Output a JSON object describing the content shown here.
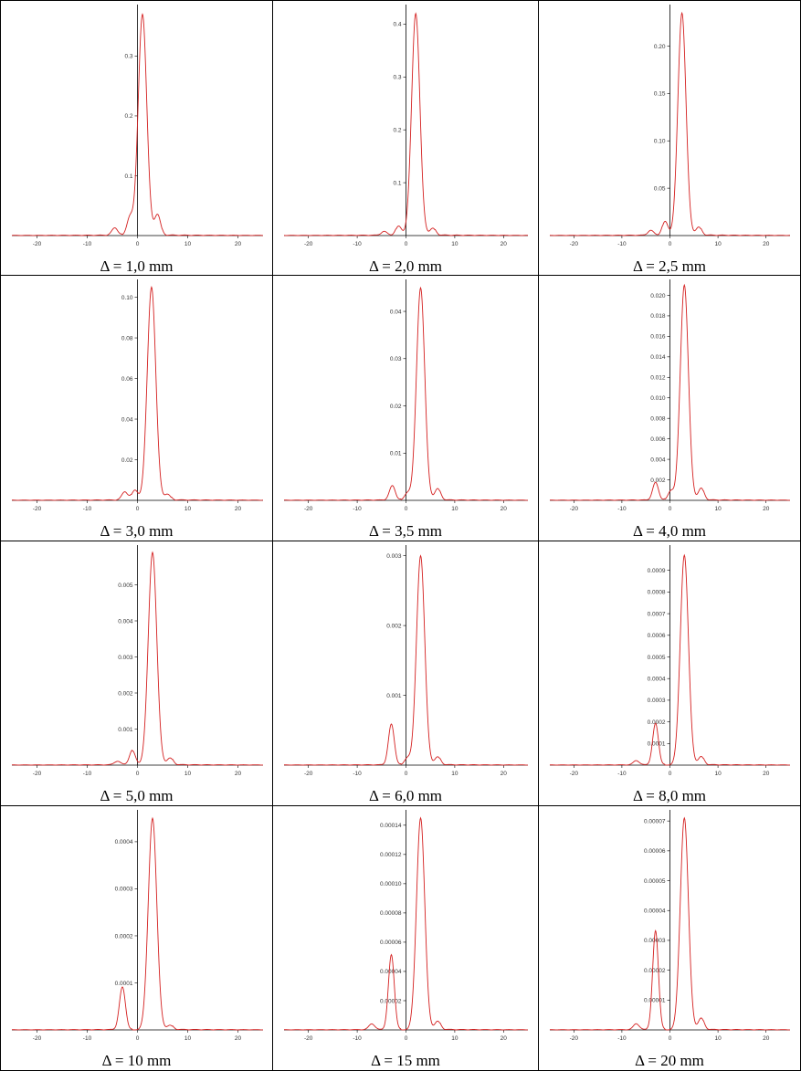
{
  "chart_data": [
    {
      "type": "line",
      "title": "Δ = 1,0 mm",
      "xlim": [
        -25,
        25
      ],
      "xticks": [
        -20,
        -10,
        0,
        10,
        20
      ],
      "yticks": [
        0.1,
        0.2,
        0.3
      ],
      "ytick_labels": [
        "0.1",
        "0.2",
        "0.3"
      ],
      "ylim": [
        0,
        0.38
      ],
      "series": [
        {
          "color": "#d42020",
          "peak": {
            "x": 1.0,
            "y": 0.37
          },
          "side_peaks": [
            {
              "x": 4.0,
              "y": 0.035
            },
            {
              "x": -1.5,
              "y": 0.03
            },
            {
              "x": -4.5,
              "y": 0.012
            }
          ]
        }
      ]
    },
    {
      "type": "line",
      "title": "Δ = 2,0 mm",
      "xlim": [
        -25,
        25
      ],
      "xticks": [
        -20,
        -10,
        0,
        10,
        20
      ],
      "yticks": [
        0.1,
        0.2,
        0.3,
        0.4
      ],
      "ytick_labels": [
        "0.1",
        "0.2",
        "0.3",
        "0.4"
      ],
      "ylim": [
        0,
        0.43
      ],
      "series": [
        {
          "color": "#d42020",
          "peak": {
            "x": 2.0,
            "y": 0.42
          },
          "side_peaks": [
            {
              "x": -1.5,
              "y": 0.018
            },
            {
              "x": 5.5,
              "y": 0.014
            },
            {
              "x": -4.5,
              "y": 0.007
            }
          ]
        }
      ]
    },
    {
      "type": "line",
      "title": "Δ = 2,5 mm",
      "xlim": [
        -25,
        25
      ],
      "xticks": [
        -20,
        -10,
        0,
        10,
        20
      ],
      "yticks": [
        0.05,
        0.1,
        0.15,
        0.2
      ],
      "ytick_labels": [
        "0.05",
        "0.10",
        "0.15",
        "0.20"
      ],
      "ylim": [
        0,
        0.24
      ],
      "series": [
        {
          "color": "#d42020",
          "peak": {
            "x": 2.5,
            "y": 0.235
          },
          "side_peaks": [
            {
              "x": -1.0,
              "y": 0.015
            },
            {
              "x": 6.0,
              "y": 0.009
            },
            {
              "x": -4.0,
              "y": 0.005
            }
          ]
        }
      ]
    },
    {
      "type": "line",
      "title": "Δ = 3,0 mm",
      "xlim": [
        -25,
        25
      ],
      "xticks": [
        -20,
        -10,
        0,
        10,
        20
      ],
      "yticks": [
        0.02,
        0.04,
        0.06,
        0.08,
        0.1
      ],
      "ytick_labels": [
        "0.02",
        "0.04",
        "0.06",
        "0.08",
        "0.10"
      ],
      "ylim": [
        0,
        0.107
      ],
      "series": [
        {
          "color": "#d42020",
          "peak": {
            "x": 2.8,
            "y": 0.105
          },
          "side_peaks": [
            {
              "x": -0.5,
              "y": 0.005
            },
            {
              "x": -2.5,
              "y": 0.004
            },
            {
              "x": 6.0,
              "y": 0.003
            }
          ]
        }
      ]
    },
    {
      "type": "line",
      "title": "Δ = 3,5 mm",
      "xlim": [
        -25,
        25
      ],
      "xticks": [
        -20,
        -10,
        0,
        10,
        20
      ],
      "yticks": [
        0.01,
        0.02,
        0.03,
        0.04
      ],
      "ytick_labels": [
        "0.01",
        "0.02",
        "0.03",
        "0.04"
      ],
      "ylim": [
        0,
        0.046
      ],
      "series": [
        {
          "color": "#d42020",
          "peak": {
            "x": 3.0,
            "y": 0.045
          },
          "side_peaks": [
            {
              "x": -2.8,
              "y": 0.003
            },
            {
              "x": 6.5,
              "y": 0.0025
            },
            {
              "x": 0.3,
              "y": 0.0015
            }
          ]
        }
      ]
    },
    {
      "type": "line",
      "title": "Δ = 4,0 mm",
      "xlim": [
        -25,
        25
      ],
      "xticks": [
        -20,
        -10,
        0,
        10,
        20
      ],
      "yticks": [
        0.002,
        0.004,
        0.006,
        0.008,
        0.01,
        0.012,
        0.014,
        0.016,
        0.018,
        0.02
      ],
      "ytick_labels": [
        "0.002",
        "0.004",
        "0.006",
        "0.008",
        "0.010",
        "0.012",
        "0.014",
        "0.016",
        "0.018",
        "0.020"
      ],
      "ylim": [
        0,
        0.0212
      ],
      "series": [
        {
          "color": "#d42020",
          "peak": {
            "x": 3.0,
            "y": 0.021
          },
          "side_peaks": [
            {
              "x": -3.0,
              "y": 0.0017
            },
            {
              "x": 6.5,
              "y": 0.0012
            },
            {
              "x": 0.2,
              "y": 0.0009
            }
          ]
        }
      ]
    },
    {
      "type": "line",
      "title": "Δ = 5,0 mm",
      "xlim": [
        -25,
        25
      ],
      "xticks": [
        -20,
        -10,
        0,
        10,
        20
      ],
      "yticks": [
        0.001,
        0.002,
        0.003,
        0.004,
        0.005
      ],
      "ytick_labels": [
        "0.001",
        "0.002",
        "0.003",
        "0.004",
        "0.005"
      ],
      "ylim": [
        0,
        0.006
      ],
      "series": [
        {
          "color": "#d42020",
          "peak": {
            "x": 3.0,
            "y": 0.0059
          },
          "side_peaks": [
            {
              "x": -1.0,
              "y": 0.0004
            },
            {
              "x": 6.5,
              "y": 0.0002
            },
            {
              "x": -4.0,
              "y": 0.0001
            }
          ]
        }
      ]
    },
    {
      "type": "line",
      "title": "Δ = 6,0 mm",
      "xlim": [
        -25,
        25
      ],
      "xticks": [
        -20,
        -10,
        0,
        10,
        20
      ],
      "yticks": [
        0.001,
        0.002,
        0.003
      ],
      "ytick_labels": [
        "0.001",
        "0.002",
        "0.003"
      ],
      "ylim": [
        0,
        0.0031
      ],
      "series": [
        {
          "color": "#d42020",
          "peak": {
            "x": 3.0,
            "y": 0.003
          },
          "side_peaks": [
            {
              "x": -3.0,
              "y": 0.00058
            },
            {
              "x": 6.5,
              "y": 0.00012
            },
            {
              "x": 0.3,
              "y": 0.0001
            }
          ]
        }
      ]
    },
    {
      "type": "line",
      "title": "Δ = 8,0 mm",
      "xlim": [
        -25,
        25
      ],
      "xticks": [
        -20,
        -10,
        0,
        10,
        20
      ],
      "yticks": [
        0.0001,
        0.0002,
        0.0003,
        0.0004,
        0.0005,
        0.0006,
        0.0007,
        0.0008,
        0.0009
      ],
      "ytick_labels": [
        "0.0001",
        "0.0002",
        "0.0003",
        "0.0004",
        "0.0005",
        "0.0006",
        "0.0007",
        "0.0008",
        "0.0009"
      ],
      "ylim": [
        0,
        0.001
      ],
      "series": [
        {
          "color": "#d42020",
          "peak": {
            "x": 3.0,
            "y": 0.00097
          },
          "side_peaks": [
            {
              "x": -3.0,
              "y": 0.00019
            },
            {
              "x": 6.5,
              "y": 4e-05
            },
            {
              "x": -7.0,
              "y": 2e-05
            }
          ]
        }
      ]
    },
    {
      "type": "line",
      "title": "Δ = 10 mm",
      "xlim": [
        -25,
        25
      ],
      "xticks": [
        -20,
        -10,
        0,
        10,
        20
      ],
      "yticks": [
        0.0001,
        0.0002,
        0.0003,
        0.0004
      ],
      "ytick_labels": [
        "0.0001",
        "0.0002",
        "0.0003",
        "0.0004"
      ],
      "ylim": [
        0,
        0.00046
      ],
      "series": [
        {
          "color": "#d42020",
          "peak": {
            "x": 3.0,
            "y": 0.00045
          },
          "side_peaks": [
            {
              "x": -3.0,
              "y": 9e-05
            },
            {
              "x": 6.5,
              "y": 1e-05
            }
          ]
        }
      ]
    },
    {
      "type": "line",
      "title": "Δ = 15 mm",
      "xlim": [
        -25,
        25
      ],
      "xticks": [
        -20,
        -10,
        0,
        10,
        20
      ],
      "yticks": [
        2e-05,
        4e-05,
        6e-05,
        8e-05,
        0.0001,
        0.00012,
        0.00014
      ],
      "ytick_labels": [
        "0.00002",
        "0.00004",
        "0.00006",
        "0.00008",
        "0.00010",
        "0.00012",
        "0.00014"
      ],
      "ylim": [
        0,
        0.000148
      ],
      "series": [
        {
          "color": "#d42020",
          "peak": {
            "x": 3.0,
            "y": 0.000145
          },
          "side_peaks": [
            {
              "x": -3.0,
              "y": 5.1e-05
            },
            {
              "x": 6.5,
              "y": 6e-06
            },
            {
              "x": -7.0,
              "y": 4e-06
            }
          ]
        }
      ]
    },
    {
      "type": "line",
      "title": "Δ = 20 mm",
      "xlim": [
        -25,
        25
      ],
      "xticks": [
        -20,
        -10,
        0,
        10,
        20
      ],
      "yticks": [
        1e-05,
        2e-05,
        3e-05,
        4e-05,
        5e-05,
        6e-05,
        7e-05
      ],
      "ytick_labels": [
        "0.00001",
        "0.00002",
        "0.00003",
        "0.00004",
        "0.00005",
        "0.00006",
        "0.00007"
      ],
      "ylim": [
        0,
        7.25e-05
      ],
      "series": [
        {
          "color": "#d42020",
          "peak": {
            "x": 3.0,
            "y": 7.1e-05
          },
          "side_peaks": [
            {
              "x": -3.0,
              "y": 3.3e-05
            },
            {
              "x": 6.5,
              "y": 4e-06
            },
            {
              "x": -7.0,
              "y": 2e-06
            }
          ]
        }
      ]
    }
  ]
}
